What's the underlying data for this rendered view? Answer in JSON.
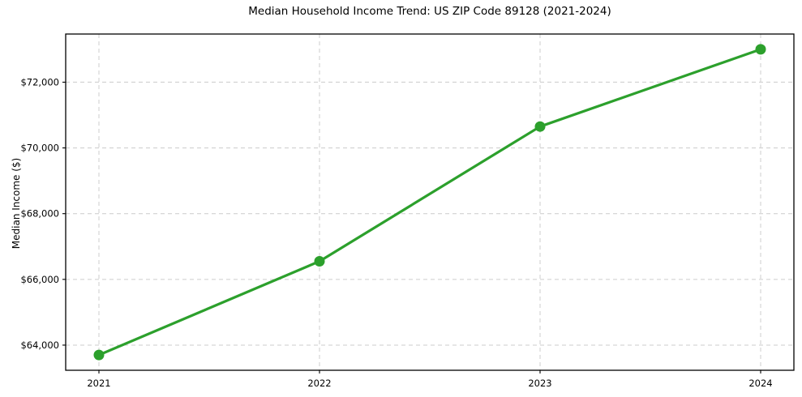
{
  "chart_data": {
    "type": "line",
    "title": "Median Household Income Trend: US ZIP Code 89128 (2021-2024)",
    "xlabel": "",
    "ylabel": "Median Income ($)",
    "categories": [
      "2021",
      "2022",
      "2023",
      "2024"
    ],
    "series": [
      {
        "color": "#2ca02c",
        "marker": "circle",
        "values": [
          63700,
          66550,
          70650,
          73000
        ]
      }
    ],
    "y_ticks": [
      {
        "value": 64000,
        "label": "$64,000"
      },
      {
        "value": 66000,
        "label": "$66,000"
      },
      {
        "value": 68000,
        "label": "$68,000"
      },
      {
        "value": 70000,
        "label": "$70,000"
      },
      {
        "value": 72000,
        "label": "$72,000"
      }
    ],
    "ylim": [
      63235,
      73465
    ],
    "grid": "on",
    "grid_style": "dashed",
    "grid_color": "#cccccc",
    "background": "#ffffff",
    "legend": "none"
  }
}
